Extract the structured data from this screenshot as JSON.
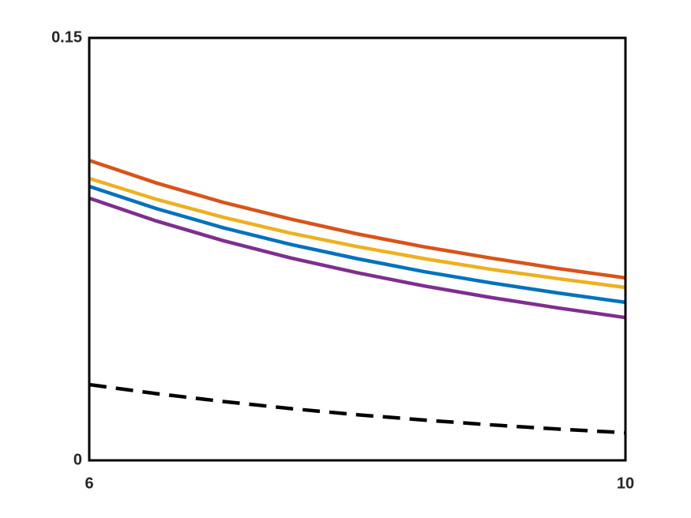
{
  "chart_data": {
    "type": "line",
    "x": [
      6,
      6.5,
      7,
      7.5,
      8,
      8.5,
      9,
      9.5,
      10
    ],
    "series": [
      {
        "color": "#D95319",
        "line_style": "solid",
        "values": [
          0.1065,
          0.0985,
          0.0916,
          0.0857,
          0.0804,
          0.0758,
          0.0718,
          0.0681,
          0.0648
        ]
      },
      {
        "color": "#EDB120",
        "line_style": "solid",
        "values": [
          0.1001,
          0.0927,
          0.0863,
          0.0807,
          0.0759,
          0.0716,
          0.0678,
          0.0645,
          0.0614
        ]
      },
      {
        "color": "#0072BD",
        "line_style": "solid",
        "values": [
          0.0973,
          0.0894,
          0.0826,
          0.0767,
          0.0716,
          0.067,
          0.063,
          0.0594,
          0.0561
        ]
      },
      {
        "color": "#7E2F8E",
        "line_style": "solid",
        "values": [
          0.0931,
          0.085,
          0.078,
          0.0719,
          0.0666,
          0.0619,
          0.0578,
          0.0541,
          0.0507
        ]
      },
      {
        "color": "#000000",
        "line_style": "dashed",
        "values": [
          0.0269,
          0.0237,
          0.0209,
          0.0184,
          0.0162,
          0.0143,
          0.0126,
          0.0111,
          0.0098
        ]
      }
    ],
    "xlim": [
      6,
      10
    ],
    "xticks": [
      6,
      10
    ],
    "ylim": [
      0,
      0.15
    ],
    "yticks": [
      0,
      0.15
    ],
    "grid": false
  }
}
